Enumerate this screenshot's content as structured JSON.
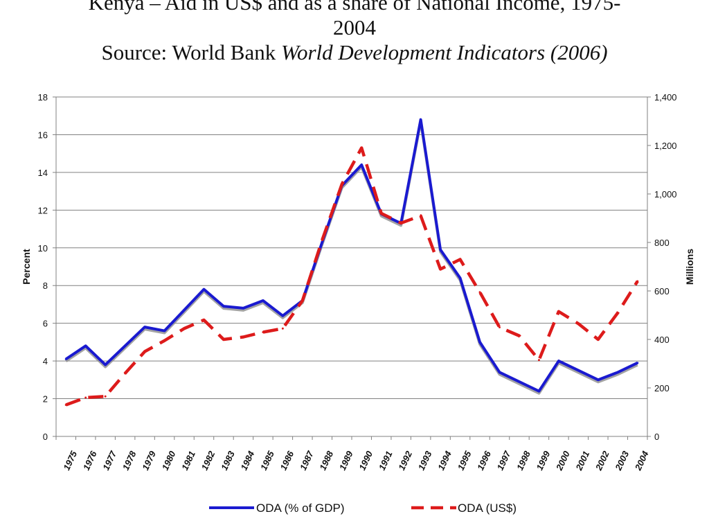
{
  "title": {
    "line1": "Kenya – Aid in US$ and as a share of  National Income, 1975-",
    "line2": "2004",
    "line3_prefix": "Source: World Bank ",
    "line3_italic": "World Development Indicators (2006)"
  },
  "colors": {
    "gdp_series": "#1a1ad0",
    "usd_series": "#dd1b1b",
    "grid": "#808080",
    "shadow": "#8c8c8c"
  },
  "chart_data": {
    "type": "line",
    "x": [
      1975,
      1976,
      1977,
      1978,
      1979,
      1980,
      1981,
      1982,
      1983,
      1984,
      1985,
      1986,
      1987,
      1988,
      1989,
      1990,
      1991,
      1992,
      1993,
      1994,
      1995,
      1996,
      1997,
      1998,
      1999,
      2000,
      2001,
      2002,
      2003,
      2004
    ],
    "x_tick_labels": [
      "1975",
      "1976",
      "1977",
      "1978",
      "1979",
      "1980",
      "1981",
      "1982",
      "1983",
      "1984",
      "1985",
      "1986",
      "1987",
      "1988",
      "1989",
      "1990",
      "1991",
      "1992",
      "1993",
      "1994",
      "1995",
      "1996",
      "1997",
      "1998",
      "1999",
      "2000",
      "2001",
      "2002",
      "2003",
      "2004"
    ],
    "ylabel_left": "Percent",
    "ylabel_right": "Millions",
    "ylim_left": [
      0,
      18
    ],
    "ylim_right": [
      0,
      1400
    ],
    "yticks_left": [
      "0",
      "2",
      "4",
      "6",
      "8",
      "10",
      "12",
      "14",
      "16",
      "18"
    ],
    "yticks_right": [
      "0",
      "200",
      "400",
      "600",
      "800",
      "1,000",
      "1,200",
      "1,400"
    ],
    "grid": true,
    "legend_position": "bottom",
    "series": [
      {
        "name": "ODA (% of GDP)",
        "axis": "left",
        "style": "solid",
        "values": [
          4.1,
          4.8,
          3.8,
          4.8,
          5.8,
          5.6,
          6.7,
          7.8,
          6.9,
          6.8,
          7.2,
          6.4,
          7.2,
          10.3,
          13.3,
          14.4,
          11.8,
          11.3,
          16.8,
          9.9,
          8.4,
          5.0,
          3.4,
          2.9,
          2.4,
          4.0,
          3.5,
          3.0,
          3.4,
          3.9
        ]
      },
      {
        "name": "ODA (US$)",
        "axis": "right",
        "style": "dashed",
        "values": [
          130,
          160,
          165,
          260,
          350,
          395,
          445,
          480,
          400,
          410,
          430,
          445,
          560,
          810,
          1040,
          1190,
          920,
          880,
          910,
          690,
          730,
          595,
          450,
          415,
          315,
          515,
          465,
          400,
          510,
          640
        ]
      }
    ]
  }
}
